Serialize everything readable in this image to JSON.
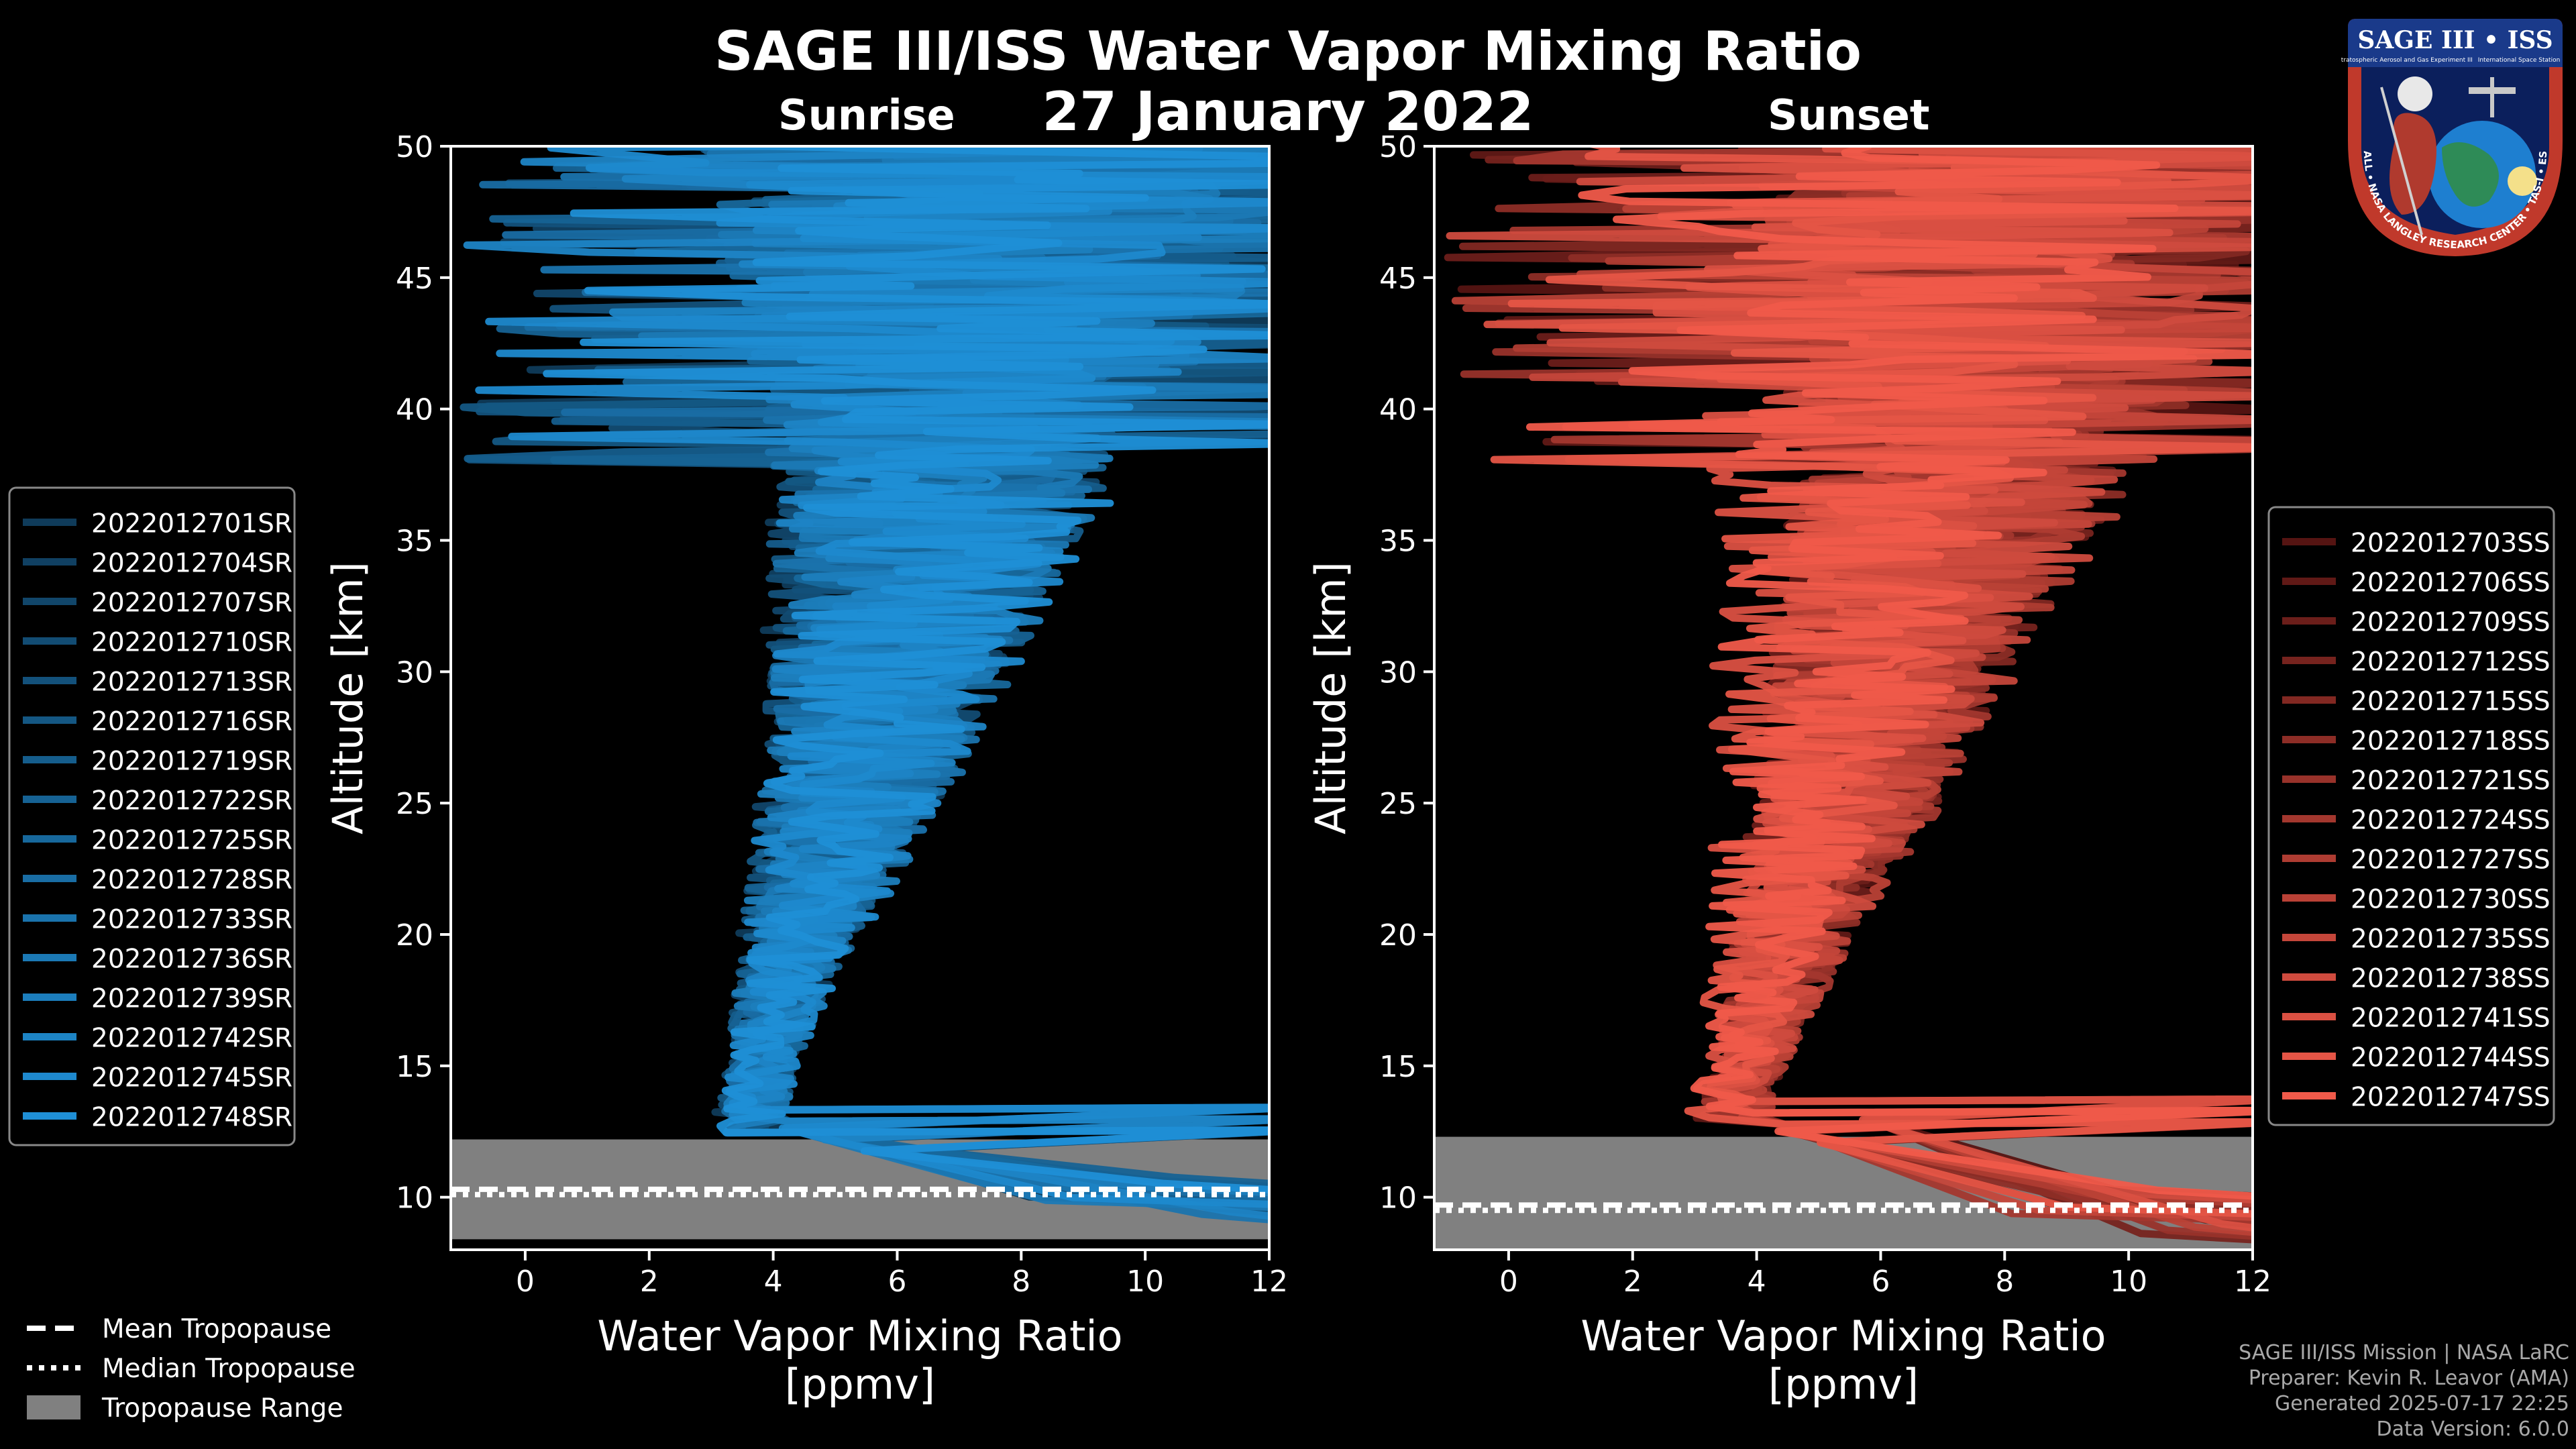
{
  "header": {
    "title": "SAGE III/ISS Water Vapor Mixing Ratio",
    "date": "27 January 2022"
  },
  "badge": {
    "top_text": "SAGE III • ISS",
    "sub_text_left": "Stratospheric Aerosol and Gas Experiment III",
    "sub_text_right": "International Space Station",
    "ring_text": "BALL • NASA LANGLEY RESEARCH CENTER • TAS-I • ESA"
  },
  "credits": {
    "line1": "SAGE III/ISS Mission | NASA LaRC",
    "line2": "Preparer: Kevin R. Leavor (AMA)",
    "line3": "Generated 2025-07-17 22:25",
    "line4": "Data Version: 6.0.0"
  },
  "colors": {
    "sunrise": "#1f8fd6",
    "sunset": "#f05a4a",
    "tropopause_range": "#808080",
    "background": "#000000"
  },
  "tropopause_legend": {
    "mean": "Mean Tropopause",
    "median": "Median Tropopause",
    "range": "Tropopause Range"
  },
  "chart_data": [
    {
      "type": "line",
      "panel": "Sunrise",
      "title": "Sunrise",
      "xlabel": "Water Vapor Mixing Ratio",
      "xlabel_units": "[ppmv]",
      "ylabel": "Altitude [km]",
      "xlim": [
        -1.2,
        12
      ],
      "ylim": [
        8,
        50
      ],
      "xticks": [
        0,
        2,
        4,
        6,
        8,
        10,
        12
      ],
      "yticks": [
        10,
        15,
        20,
        25,
        30,
        35,
        40,
        45,
        50
      ],
      "tropopause": {
        "mean_km": 10.3,
        "median_km": 10.1,
        "range_km": [
          8.4,
          12.2
        ]
      },
      "profile_summary": {
        "altitude_km": [
          9,
          10,
          11,
          12,
          12.5,
          13,
          14,
          15,
          16,
          17,
          18,
          20,
          22,
          24,
          26,
          28,
          30,
          32,
          34,
          36,
          38,
          40,
          42,
          44,
          46,
          48,
          50
        ],
        "median_ppmv": [
          12,
          10,
          7,
          4.5,
          3.5,
          3.6,
          3.7,
          3.8,
          3.9,
          4.0,
          4.1,
          4.4,
          4.7,
          5.0,
          5.3,
          5.5,
          5.8,
          6.0,
          6.2,
          6.4,
          6.6,
          6.8,
          7.0,
          7.1,
          7.2,
          7.3,
          7.4
        ],
        "spread_ppmv": [
          3,
          3,
          3,
          1.5,
          0.8,
          0.8,
          0.7,
          0.7,
          0.8,
          0.9,
          1.0,
          1.2,
          1.5,
          1.8,
          2.0,
          2.2,
          2.5,
          2.7,
          3.0,
          3.3,
          3.6,
          4.0,
          4.5,
          5.0,
          5.5,
          6.0,
          6.5
        ]
      },
      "series": [
        {
          "name": "2022012701SR"
        },
        {
          "name": "2022012704SR"
        },
        {
          "name": "2022012707SR"
        },
        {
          "name": "2022012710SR"
        },
        {
          "name": "2022012713SR"
        },
        {
          "name": "2022012716SR"
        },
        {
          "name": "2022012719SR"
        },
        {
          "name": "2022012722SR"
        },
        {
          "name": "2022012725SR"
        },
        {
          "name": "2022012728SR"
        },
        {
          "name": "2022012733SR"
        },
        {
          "name": "2022012736SR"
        },
        {
          "name": "2022012739SR"
        },
        {
          "name": "2022012742SR"
        },
        {
          "name": "2022012745SR"
        },
        {
          "name": "2022012748SR"
        }
      ],
      "legend_position": "left"
    },
    {
      "type": "line",
      "panel": "Sunset",
      "title": "Sunset",
      "xlabel": "Water Vapor Mixing Ratio",
      "xlabel_units": "[ppmv]",
      "ylabel": "Altitude [km]",
      "xlim": [
        -1.2,
        12
      ],
      "ylim": [
        8,
        50
      ],
      "xticks": [
        0,
        2,
        4,
        6,
        8,
        10,
        12
      ],
      "yticks": [
        10,
        15,
        20,
        25,
        30,
        35,
        40,
        45,
        50
      ],
      "tropopause": {
        "mean_km": 9.7,
        "median_km": 9.5,
        "range_km": [
          8.0,
          12.3
        ]
      },
      "profile_summary": {
        "altitude_km": [
          8.5,
          10,
          11,
          12,
          12.5,
          13,
          14,
          15,
          16,
          17,
          18,
          20,
          22,
          24,
          26,
          28,
          30,
          32,
          34,
          36,
          38,
          40,
          42,
          44,
          46,
          48,
          50
        ],
        "median_ppmv": [
          11,
          9,
          6.5,
          4.5,
          3.6,
          3.5,
          3.6,
          3.8,
          3.9,
          4.0,
          4.2,
          4.4,
          4.7,
          5.0,
          5.3,
          5.5,
          5.8,
          6.0,
          6.3,
          6.6,
          6.8,
          7.0,
          7.2,
          7.3,
          7.4,
          7.5,
          7.6
        ],
        "spread_ppmv": [
          3,
          3,
          3,
          1.5,
          0.8,
          0.8,
          0.7,
          0.7,
          0.8,
          0.9,
          1.0,
          1.2,
          1.5,
          1.8,
          2.0,
          2.2,
          2.5,
          2.7,
          3.0,
          3.3,
          3.6,
          4.0,
          4.5,
          5.0,
          5.5,
          6.0,
          6.5
        ]
      },
      "series": [
        {
          "name": "2022012703SS"
        },
        {
          "name": "2022012706SS"
        },
        {
          "name": "2022012709SS"
        },
        {
          "name": "2022012712SS"
        },
        {
          "name": "2022012715SS"
        },
        {
          "name": "2022012718SS"
        },
        {
          "name": "2022012721SS"
        },
        {
          "name": "2022012724SS"
        },
        {
          "name": "2022012727SS"
        },
        {
          "name": "2022012730SS"
        },
        {
          "name": "2022012735SS"
        },
        {
          "name": "2022012738SS"
        },
        {
          "name": "2022012741SS"
        },
        {
          "name": "2022012744SS"
        },
        {
          "name": "2022012747SS"
        }
      ],
      "legend_position": "right"
    }
  ]
}
